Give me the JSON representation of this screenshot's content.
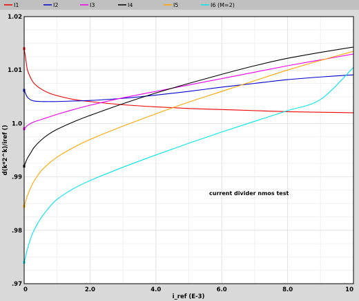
{
  "chart_data": {
    "type": "line",
    "title": "",
    "xlabel": "i_ref (E-3)",
    "ylabel": "d(k*2^k)/iref ()",
    "xlim": [
      0,
      10
    ],
    "ylim": [
      0.97,
      1.02
    ],
    "x_ticks": [
      0,
      2,
      4,
      6,
      8,
      10
    ],
    "x_tick_labels": [
      "0",
      "2.0",
      "4.0",
      "6.0",
      "8.0",
      "10"
    ],
    "y_ticks": [
      0.97,
      0.98,
      0.99,
      1.0,
      1.01,
      1.02
    ],
    "y_tick_labels": [
      ".97",
      ".98",
      ".99",
      "1.0",
      "1.01",
      "1.02"
    ],
    "grid": true,
    "legend_position": "top",
    "annotation": "current divider nmos test",
    "series": [
      {
        "name": "I1",
        "color": "#ee0000",
        "x": [
          0.0,
          0.05,
          0.1,
          0.2,
          0.3,
          0.5,
          0.75,
          1,
          1.5,
          2,
          3,
          4,
          5,
          6,
          7,
          8,
          9,
          10
        ],
        "y": [
          1.014,
          1.012,
          1.01,
          1.0085,
          1.0075,
          1.0065,
          1.0057,
          1.0052,
          1.0045,
          1.0041,
          1.0035,
          1.0031,
          1.0028,
          1.0026,
          1.0024,
          1.0022,
          1.0021,
          1.002
        ]
      },
      {
        "name": "I2",
        "color": "#0000cc",
        "x": [
          0.0,
          0.05,
          0.1,
          0.2,
          0.3,
          0.5,
          0.75,
          1,
          1.5,
          2,
          3,
          4,
          5,
          6,
          7,
          8,
          9,
          10
        ],
        "y": [
          1.0062,
          1.0055,
          1.0049,
          1.0044,
          1.0042,
          1.0041,
          1.0041,
          1.0041,
          1.0042,
          1.0043,
          1.0047,
          1.0053,
          1.006,
          1.0068,
          1.0075,
          1.0082,
          1.0087,
          1.0091
        ]
      },
      {
        "name": "I3",
        "color": "#ee00ee",
        "x": [
          0.0,
          0.05,
          0.1,
          0.2,
          0.3,
          0.5,
          0.75,
          1,
          1.5,
          2,
          3,
          4,
          5,
          6,
          7,
          8,
          9,
          10
        ],
        "y": [
          0.999,
          0.9993,
          0.9996,
          1.0,
          1.0003,
          1.0007,
          1.0012,
          1.0017,
          1.0026,
          1.0034,
          1.0048,
          1.006,
          1.0072,
          1.0084,
          1.0096,
          1.0108,
          1.0119,
          1.013
        ]
      },
      {
        "name": "I4",
        "color": "#000000",
        "x": [
          0.0,
          0.05,
          0.1,
          0.2,
          0.3,
          0.5,
          0.75,
          1,
          1.5,
          2,
          3,
          4,
          5,
          6,
          7,
          8,
          9,
          10
        ],
        "y": [
          0.992,
          0.9928,
          0.9935,
          0.9945,
          0.9955,
          0.9968,
          0.998,
          0.9989,
          1.0003,
          1.0015,
          1.0037,
          1.0057,
          1.0075,
          1.0092,
          1.0108,
          1.0122,
          1.0133,
          1.0143
        ]
      },
      {
        "name": "I5",
        "color": "#ffa500",
        "x": [
          0.0,
          0.05,
          0.1,
          0.2,
          0.3,
          0.5,
          0.75,
          1,
          1.5,
          2,
          3,
          4,
          5,
          6,
          7,
          8,
          9,
          10
        ],
        "y": [
          0.9845,
          0.9855,
          0.9865,
          0.988,
          0.9892,
          0.991,
          0.9925,
          0.9937,
          0.9955,
          0.997,
          0.9995,
          1.0018,
          1.004,
          1.006,
          1.008,
          1.01,
          1.0118,
          1.0135
        ]
      },
      {
        "name": "I6 (M=2)",
        "color": "#00e5ee",
        "x": [
          0.0,
          0.05,
          0.1,
          0.2,
          0.3,
          0.5,
          0.75,
          1,
          1.5,
          2,
          3,
          4,
          5,
          6,
          7,
          8,
          9,
          10
        ],
        "y": [
          0.974,
          0.9752,
          0.9765,
          0.9785,
          0.98,
          0.9822,
          0.9842,
          0.9858,
          0.9878,
          0.9893,
          0.9918,
          0.9941,
          0.9963,
          0.9984,
          1.0004,
          1.0024,
          1.0045,
          1.0105
        ]
      }
    ]
  }
}
